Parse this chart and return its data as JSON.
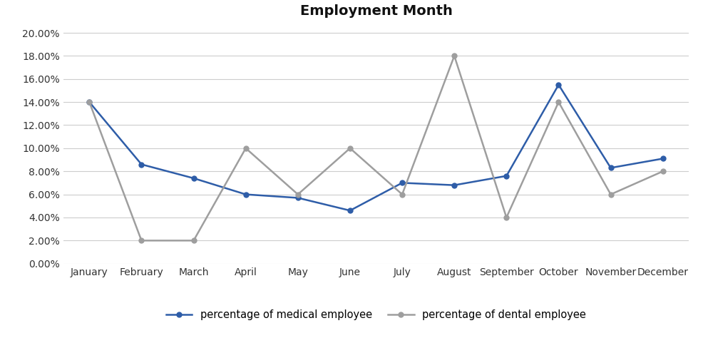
{
  "title": "Employment Month",
  "months": [
    "January",
    "February",
    "March",
    "April",
    "May",
    "June",
    "July",
    "August",
    "September",
    "October",
    "November",
    "December"
  ],
  "medical": [
    0.14,
    0.086,
    0.074,
    0.06,
    0.057,
    0.046,
    0.07,
    0.068,
    0.076,
    0.155,
    0.083,
    0.091
  ],
  "dental": [
    0.14,
    0.02,
    0.02,
    0.1,
    0.06,
    0.1,
    0.06,
    0.18,
    0.04,
    0.14,
    0.06,
    0.08
  ],
  "medical_color": "#2E5DA8",
  "dental_color": "#9E9E9E",
  "ylim": [
    0.0,
    0.205
  ],
  "yticks": [
    0.0,
    0.02,
    0.04,
    0.06,
    0.08,
    0.1,
    0.12,
    0.14,
    0.16,
    0.18,
    0.2
  ],
  "legend_medical": "percentage of medical employee",
  "legend_dental": "percentage of dental employee",
  "title_fontsize": 14,
  "background_color": "#ffffff",
  "grid_color": "#cccccc"
}
